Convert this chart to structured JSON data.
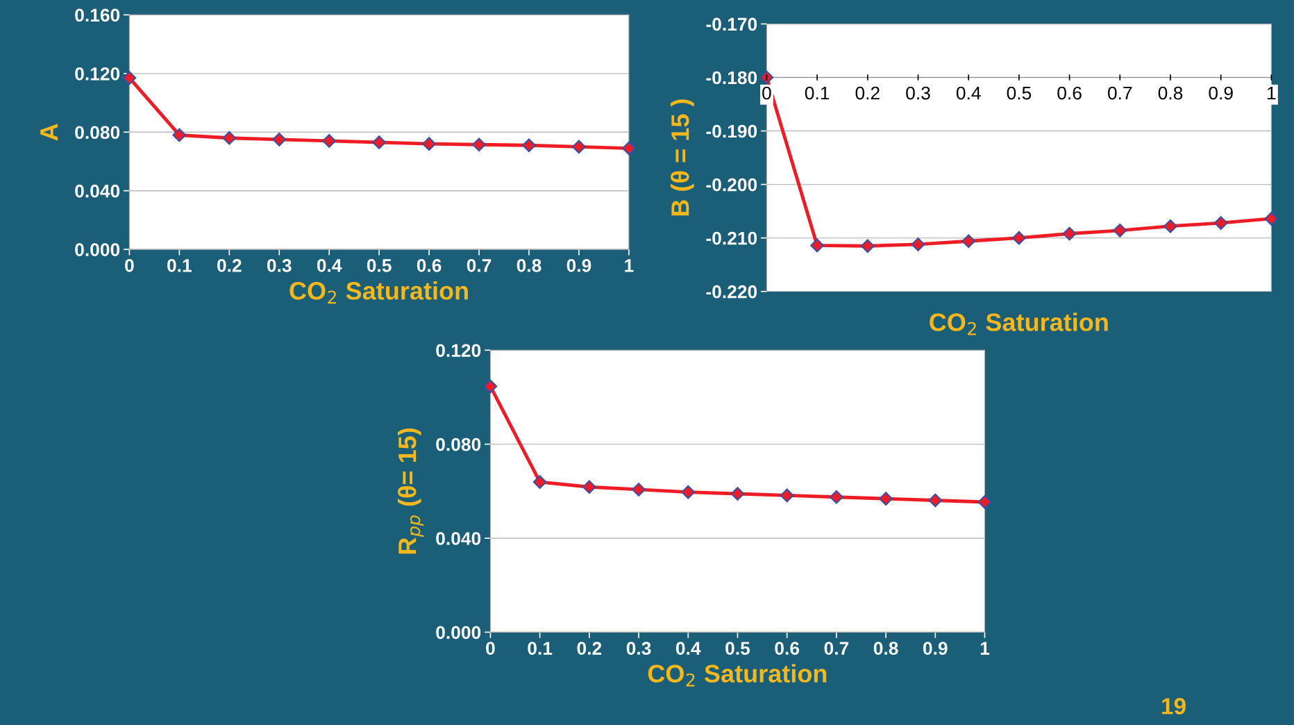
{
  "chart_data": [
    {
      "type": "line",
      "xlabel": "CO$_{2}$ Saturation",
      "ylabel": "A",
      "x": [
        0,
        0.1,
        0.2,
        0.3,
        0.4,
        0.5,
        0.6,
        0.7,
        0.8,
        0.9,
        1
      ],
      "series": [
        {
          "color": "#ee1c25",
          "values": [
            0.117,
            0.078,
            0.076,
            0.075,
            0.074,
            0.073,
            0.072,
            0.0715,
            0.071,
            0.07,
            0.069
          ]
        }
      ],
      "xlim": [
        0,
        1
      ],
      "xticks": [
        0,
        0.1,
        0.2,
        0.3,
        0.4,
        0.5,
        0.6,
        0.7,
        0.8,
        0.9,
        1
      ],
      "ylim": [
        0,
        0.16
      ],
      "yticks": [
        {
          "value": 0,
          "label": "0.000"
        },
        {
          "value": 0.04,
          "label": "0.040"
        },
        {
          "value": 0.08,
          "label": "0.080"
        },
        {
          "value": 0.12,
          "label": "0.120"
        },
        {
          "value": 0.16,
          "label": "0.160"
        }
      ],
      "grid": "y",
      "marker": "diamond",
      "line_style": "solid"
    },
    {
      "type": "line",
      "xlabel": "CO$_{2}$ Saturation",
      "ylabel": "B (θ = 15 )",
      "x": [
        0,
        0.1,
        0.2,
        0.3,
        0.4,
        0.5,
        0.6,
        0.7,
        0.8,
        0.9,
        1
      ],
      "series": [
        {
          "color": "#ee1c25",
          "values": [
            -0.18,
            -0.2114,
            -0.2115,
            -0.2112,
            -0.2106,
            -0.21,
            -0.2092,
            -0.2086,
            -0.2078,
            -0.2072,
            -0.2064
          ]
        }
      ],
      "xlim": [
        0,
        1
      ],
      "xticks": [
        0,
        0.1,
        0.2,
        0.3,
        0.4,
        0.5,
        0.6,
        0.7,
        0.8,
        0.9,
        1
      ],
      "ylim": [
        -0.22,
        -0.17
      ],
      "yticks": [
        {
          "value": -0.22,
          "label": "-0.220"
        },
        {
          "value": -0.21,
          "label": "-0.210"
        },
        {
          "value": -0.2,
          "label": "-0.200"
        },
        {
          "value": -0.19,
          "label": "-0.190"
        },
        {
          "value": -0.18,
          "label": "-0.180"
        },
        {
          "value": -0.17,
          "label": "-0.170"
        }
      ],
      "grid": "y",
      "marker": "diamond",
      "line_style": "solid"
    },
    {
      "type": "line",
      "xlabel": "CO$_{2}$ Saturation",
      "ylabel": "R$_{pp}$ (θ= 15)",
      "x": [
        0,
        0.1,
        0.2,
        0.3,
        0.4,
        0.5,
        0.6,
        0.7,
        0.8,
        0.9,
        1
      ],
      "series": [
        {
          "color": "#ee1c25",
          "values": [
            0.1046,
            0.0639,
            0.0618,
            0.0607,
            0.0596,
            0.0589,
            0.0582,
            0.0575,
            0.0568,
            0.0561,
            0.0554
          ]
        }
      ],
      "xlim": [
        0,
        1
      ],
      "xticks": [
        0,
        0.1,
        0.2,
        0.3,
        0.4,
        0.5,
        0.6,
        0.7,
        0.8,
        0.9,
        1
      ],
      "ylim": [
        0,
        0.12
      ],
      "yticks": [
        {
          "value": 0,
          "label": "0.000"
        },
        {
          "value": 0.04,
          "label": "0.040"
        },
        {
          "value": 0.08,
          "label": "0.080"
        },
        {
          "value": 0.12,
          "label": "0.120"
        }
      ],
      "grid": "y",
      "marker": "diamond",
      "line_style": "solid",
      "annotations": [
        "19"
      ]
    }
  ]
}
